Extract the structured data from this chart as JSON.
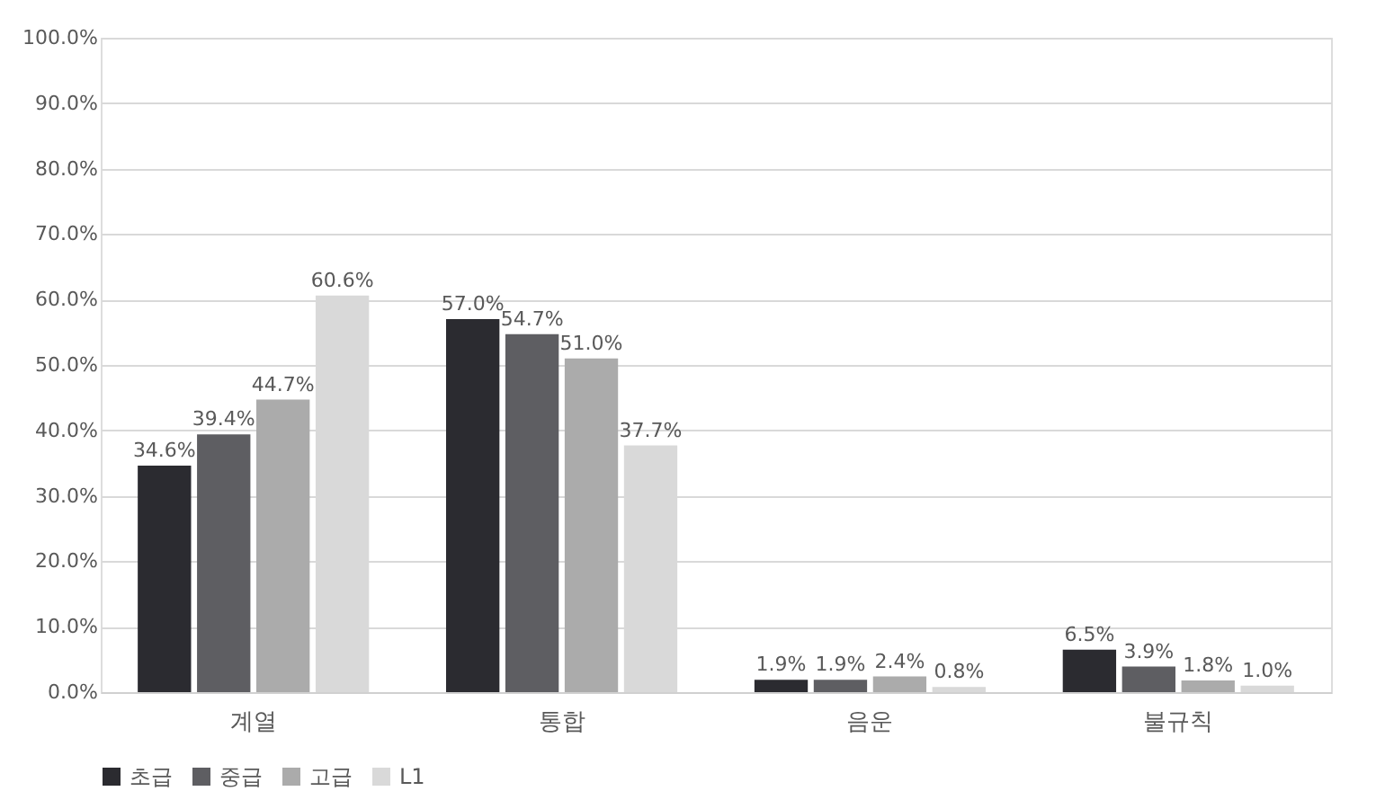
{
  "chart_data": {
    "type": "bar",
    "categories": [
      "계열",
      "통합",
      "음운",
      "불규칙"
    ],
    "series": [
      {
        "name": "초급",
        "color": "#2b2b30",
        "values": [
          34.6,
          57.0,
          1.9,
          6.5
        ],
        "value_labels": [
          "34.6%",
          "57.0%",
          "1.9%",
          "6.5%"
        ]
      },
      {
        "name": "중급",
        "color": "#5e5e62",
        "values": [
          39.4,
          54.7,
          1.9,
          3.9
        ],
        "value_labels": [
          "39.4%",
          "54.7%",
          "1.9%",
          "3.9%"
        ]
      },
      {
        "name": "고급",
        "color": "#ababab",
        "values": [
          44.7,
          51.0,
          2.4,
          1.8
        ],
        "value_labels": [
          "44.7%",
          "51.0%",
          "2.4%",
          "1.8%"
        ]
      },
      {
        "name": "L1",
        "color": "#d9d9d9",
        "values": [
          60.6,
          37.7,
          0.8,
          1.0
        ],
        "value_labels": [
          "60.6%",
          "37.7%",
          "0.8%",
          "1.0%"
        ]
      }
    ],
    "ylim": [
      0,
      100
    ],
    "yticks": [
      {
        "value": 0,
        "label": "0.0%"
      },
      {
        "value": 10,
        "label": "10.0%"
      },
      {
        "value": 20,
        "label": "20.0%"
      },
      {
        "value": 30,
        "label": "30.0%"
      },
      {
        "value": 40,
        "label": "40.0%"
      },
      {
        "value": 50,
        "label": "50.0%"
      },
      {
        "value": 60,
        "label": "60.0%"
      },
      {
        "value": 70,
        "label": "70.0%"
      },
      {
        "value": 80,
        "label": "80.0%"
      },
      {
        "value": 90,
        "label": "90.0%"
      },
      {
        "value": 100,
        "label": "100.0%"
      }
    ],
    "grid": "y",
    "legend": "bottom"
  }
}
